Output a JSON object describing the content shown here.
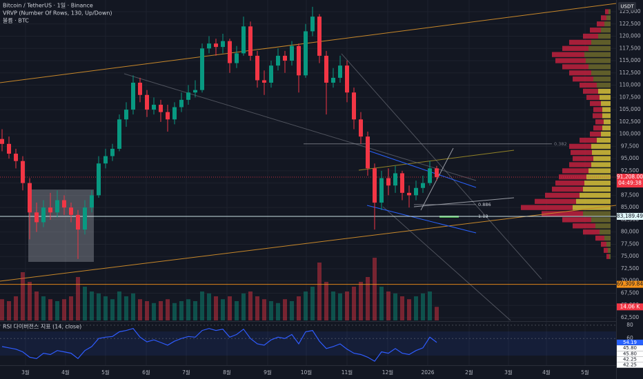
{
  "chart_data": {
    "type": "candlestick",
    "title": "Bitcoin / TetherUS · 1일 · Binance",
    "indicators": [
      "VRVP (Number Of Rows, 130, Up/Down)",
      "볼륨 · BTC"
    ],
    "currency": "USDT",
    "up_color": "#089981",
    "down_color": "#f23645",
    "ohlc": [
      [
        99000,
        101000,
        96500,
        98000
      ],
      [
        98000,
        99500,
        95000,
        96000
      ],
      [
        96000,
        97000,
        93000,
        94500
      ],
      [
        94500,
        95500,
        88500,
        90000
      ],
      [
        90000,
        91000,
        78500,
        84000
      ],
      [
        84000,
        86000,
        80000,
        82000
      ],
      [
        82000,
        86500,
        81000,
        85000
      ],
      [
        85000,
        88000,
        82500,
        84000
      ],
      [
        84000,
        88500,
        83000,
        86500
      ],
      [
        86500,
        87500,
        83500,
        85000
      ],
      [
        85000,
        86000,
        82000,
        83500
      ],
      [
        83500,
        84500,
        74500,
        80500
      ],
      [
        80500,
        86500,
        79500,
        85000
      ],
      [
        85000,
        88500,
        84000,
        87500
      ],
      [
        87500,
        95500,
        87000,
        94000
      ],
      [
        94000,
        97000,
        93000,
        95500
      ],
      [
        95500,
        98000,
        94500,
        97000
      ],
      [
        97000,
        104000,
        96500,
        103000
      ],
      [
        103000,
        106500,
        101500,
        105000
      ],
      [
        105000,
        112000,
        104000,
        110500
      ],
      [
        110500,
        111500,
        106500,
        108000
      ],
      [
        108000,
        109000,
        103500,
        105000
      ],
      [
        105000,
        107500,
        104000,
        106000
      ],
      [
        106000,
        107000,
        102500,
        104500
      ],
      [
        104500,
        106000,
        100500,
        103000
      ],
      [
        103000,
        106500,
        102000,
        105500
      ],
      [
        105500,
        108500,
        104500,
        107000
      ],
      [
        107000,
        110000,
        106000,
        108500
      ],
      [
        108500,
        111000,
        107500,
        109000
      ],
      [
        109000,
        118500,
        108500,
        117500
      ],
      [
        117500,
        120000,
        116500,
        118500
      ],
      [
        118500,
        119500,
        116000,
        117800
      ],
      [
        117800,
        120500,
        116500,
        119000
      ],
      [
        119000,
        119500,
        112500,
        114500
      ],
      [
        114500,
        118000,
        113500,
        116500
      ],
      [
        116500,
        124000,
        116000,
        122000
      ],
      [
        122000,
        123000,
        115000,
        116000
      ],
      [
        116000,
        117000,
        109500,
        111000
      ],
      [
        111000,
        113000,
        108000,
        110500
      ],
      [
        110500,
        115000,
        109500,
        114000
      ],
      [
        114000,
        117500,
        113000,
        116000
      ],
      [
        116000,
        117000,
        112500,
        115000
      ],
      [
        115000,
        119000,
        114000,
        118000
      ],
      [
        118000,
        118500,
        108500,
        112000
      ],
      [
        112000,
        122500,
        111500,
        121000
      ],
      [
        121000,
        126000,
        120000,
        124000
      ],
      [
        124000,
        124500,
        114500,
        116000
      ],
      [
        116000,
        117000,
        104000,
        110500
      ],
      [
        110500,
        113500,
        109500,
        111500
      ],
      [
        111500,
        116000,
        110500,
        114000
      ],
      [
        114000,
        115000,
        106500,
        108500
      ],
      [
        108500,
        109500,
        101000,
        103000
      ],
      [
        103000,
        104500,
        98000,
        99500
      ],
      [
        99500,
        100500,
        91500,
        93000
      ],
      [
        93000,
        94000,
        80500,
        86000
      ],
      [
        86000,
        92500,
        84500,
        91000
      ],
      [
        91000,
        93000,
        87500,
        89500
      ],
      [
        89500,
        93500,
        88000,
        92000
      ],
      [
        92000,
        92500,
        86500,
        88000
      ],
      [
        88000,
        89500,
        85000,
        87500
      ],
      [
        87500,
        90500,
        86500,
        89000
      ],
      [
        89000,
        91500,
        88000,
        90000
      ],
      [
        90000,
        94500,
        89500,
        93000
      ],
      [
        93000,
        93500,
        90500,
        91208
      ]
    ],
    "xlim": [
      -0.3,
      88.7
    ],
    "xticks": [
      {
        "value": 3.4,
        "label": "3월"
      },
      {
        "value": 9.2,
        "label": "4월"
      },
      {
        "value": 15,
        "label": "5월"
      },
      {
        "value": 20.9,
        "label": "6월"
      },
      {
        "value": 26.7,
        "label": "7월"
      },
      {
        "value": 32.6,
        "label": "8월"
      },
      {
        "value": 38.5,
        "label": "9월"
      },
      {
        "value": 44.1,
        "label": "10월"
      },
      {
        "value": 50,
        "label": "11월"
      },
      {
        "value": 55.9,
        "label": "12월"
      },
      {
        "value": 61.7,
        "label": "2026"
      },
      {
        "value": 67.7,
        "label": "2월"
      },
      {
        "value": 73.4,
        "label": "3월"
      },
      {
        "value": 78.9,
        "label": "4월"
      },
      {
        "value": 84.5,
        "label": "5월"
      }
    ],
    "ylim": [
      61937,
      127393
    ],
    "yticks": [
      {
        "value": 62500,
        "label": "62,500"
      },
      {
        "value": 65000,
        "label": "65,000"
      },
      {
        "value": 67500,
        "label": "67,500"
      },
      {
        "value": 70000,
        "label": "70,000"
      },
      {
        "value": 72500,
        "label": "72,500"
      },
      {
        "value": 75000,
        "label": "75,000"
      },
      {
        "value": 77500,
        "label": "77,500"
      },
      {
        "value": 80000,
        "label": "80,000"
      },
      {
        "value": 82500,
        "label": "82,500"
      },
      {
        "value": 85000,
        "label": "85,000"
      },
      {
        "value": 87500,
        "label": "87,500"
      },
      {
        "value": 90000,
        "label": "90,000"
      },
      {
        "value": 92500,
        "label": "92,500"
      },
      {
        "value": 95000,
        "label": "95,000"
      },
      {
        "value": 97500,
        "label": "97,500"
      },
      {
        "value": 100000,
        "label": "100,000"
      },
      {
        "value": 102500,
        "label": "102,500"
      },
      {
        "value": 105000,
        "label": "105,000"
      },
      {
        "value": 107500,
        "label": "107,500"
      },
      {
        "value": 110000,
        "label": "110,000"
      },
      {
        "value": 112500,
        "label": "112,500"
      },
      {
        "value": 115000,
        "label": "115,000"
      },
      {
        "value": 117500,
        "label": "117,500"
      },
      {
        "value": 120000,
        "label": "120,000"
      },
      {
        "value": 122500,
        "label": "122,500"
      },
      {
        "value": 125000,
        "label": "125,000"
      }
    ],
    "grid": true,
    "fib_levels": [
      {
        "value": 98000,
        "label": "0.382"
      },
      {
        "value": 85600,
        "label": "0.886"
      },
      {
        "value": 83189.49,
        "label": "1.13"
      }
    ],
    "price_labels": [
      {
        "value": 91208,
        "label": "91,208.00",
        "color": "#f23645",
        "text_color": "#ffffff"
      },
      {
        "value": 83189.49,
        "label": "83,189.49",
        "color": "#e0f7fa",
        "text_color": "#131722"
      },
      {
        "value": 69309.84,
        "label": "69,309.84",
        "color": "#f7931a",
        "text_color": "#131722"
      }
    ],
    "countdown": "04:49:38",
    "volume": {
      "values": [
        22,
        20,
        25,
        50,
        40,
        30,
        25,
        22,
        20,
        22,
        25,
        45,
        35,
        30,
        28,
        25,
        22,
        30,
        25,
        28,
        22,
        20,
        18,
        20,
        22,
        18,
        20,
        22,
        20,
        30,
        28,
        25,
        22,
        25,
        20,
        28,
        30,
        25,
        22,
        20,
        18,
        22,
        20,
        25,
        30,
        35,
        60,
        40,
        30,
        28,
        30,
        35,
        40,
        45,
        65,
        35,
        30,
        28,
        25,
        22,
        25,
        28,
        30,
        14.06
      ],
      "ylim": [
        0,
        100
      ],
      "marker": {
        "value": 14.06,
        "label": "14.06 K"
      }
    },
    "volume_profile": {
      "prices": [
        75000,
        76250,
        77500,
        78750,
        80000,
        81250,
        82500,
        83750,
        85000,
        86250,
        87500,
        88750,
        90000,
        91250,
        92500,
        93750,
        95000,
        96250,
        97500,
        98750,
        100000,
        101250,
        102500,
        103750,
        105000,
        106250,
        107500,
        108750,
        110000,
        111250,
        112500,
        113750,
        115000,
        116250,
        117500,
        118750,
        120000,
        121250,
        122500,
        123750,
        125000
      ],
      "up": [
        2,
        4,
        6,
        9,
        16,
        22,
        28,
        40,
        55,
        50,
        45,
        40,
        38,
        35,
        32,
        28,
        25,
        27,
        28,
        20,
        14,
        12,
        10,
        12,
        12,
        14,
        16,
        18,
        20,
        25,
        28,
        32,
        36,
        38,
        32,
        28,
        18,
        14,
        9,
        6,
        3
      ],
      "down": [
        4,
        6,
        8,
        13,
        24,
        33,
        42,
        60,
        75,
        60,
        50,
        45,
        42,
        40,
        38,
        32,
        30,
        31,
        32,
        25,
        16,
        13,
        12,
        14,
        13,
        16,
        19,
        22,
        25,
        30,
        32,
        38,
        44,
        47,
        38,
        32,
        22,
        16,
        11,
        8,
        5
      ],
      "up_colors": [
        "#6d6a2c",
        "#6d6a2c",
        "#6d6a2c",
        "#6d6a2c",
        "#6d6a2c",
        "#6d6a2c",
        "#6d6a2c",
        "#6d6a2c",
        "#d8c23a",
        "#d8c23a",
        "#d8c23a",
        "#d8c23a",
        "#d8c23a",
        "#d8c23a",
        "#d8c23a",
        "#d8c23a",
        "#d8c23a",
        "#d8c23a",
        "#d8c23a",
        "#d8c23a",
        "#d8c23a",
        "#d8c23a",
        "#d8c23a",
        "#d8c23a",
        "#d8c23a",
        "#d8c23a",
        "#d8c23a",
        "#d8c23a",
        "#6d6a2c",
        "#6d6a2c",
        "#6d6a2c",
        "#6d6a2c",
        "#6d6a2c",
        "#6d6a2c",
        "#6d6a2c",
        "#6d6a2c",
        "#6d6a2c",
        "#6d6a2c",
        "#6d6a2c",
        "#6d6a2c",
        "#6d6a2c"
      ],
      "down_color": "#c1213d",
      "xlim": [
        0,
        135
      ]
    },
    "rsi": {
      "title": "RSI 다이버전스 지표 (14, close)",
      "color": "#2f5cff",
      "values": [
        48,
        46,
        44,
        40,
        32,
        30,
        38,
        36,
        42,
        40,
        38,
        30,
        42,
        48,
        60,
        62,
        63,
        70,
        72,
        75,
        62,
        55,
        58,
        54,
        50,
        56,
        60,
        63,
        62,
        72,
        75,
        72,
        74,
        62,
        66,
        74,
        60,
        52,
        50,
        58,
        62,
        60,
        66,
        52,
        70,
        72,
        56,
        45,
        48,
        52,
        44,
        38,
        36,
        32,
        26,
        40,
        38,
        45,
        38,
        36,
        42,
        46,
        62,
        54.19
      ],
      "ylim": [
        20,
        85
      ],
      "yticks": [
        80,
        60
      ],
      "value_labels": [
        {
          "value": 54.19,
          "label": "54.19"
        },
        {
          "value": 45.8,
          "label": "45.80"
        },
        {
          "value": 45.8,
          "label": "45.80"
        },
        {
          "value": 42.25,
          "label": "42.25"
        },
        {
          "value": 42.25,
          "label": "42.25"
        }
      ]
    }
  }
}
